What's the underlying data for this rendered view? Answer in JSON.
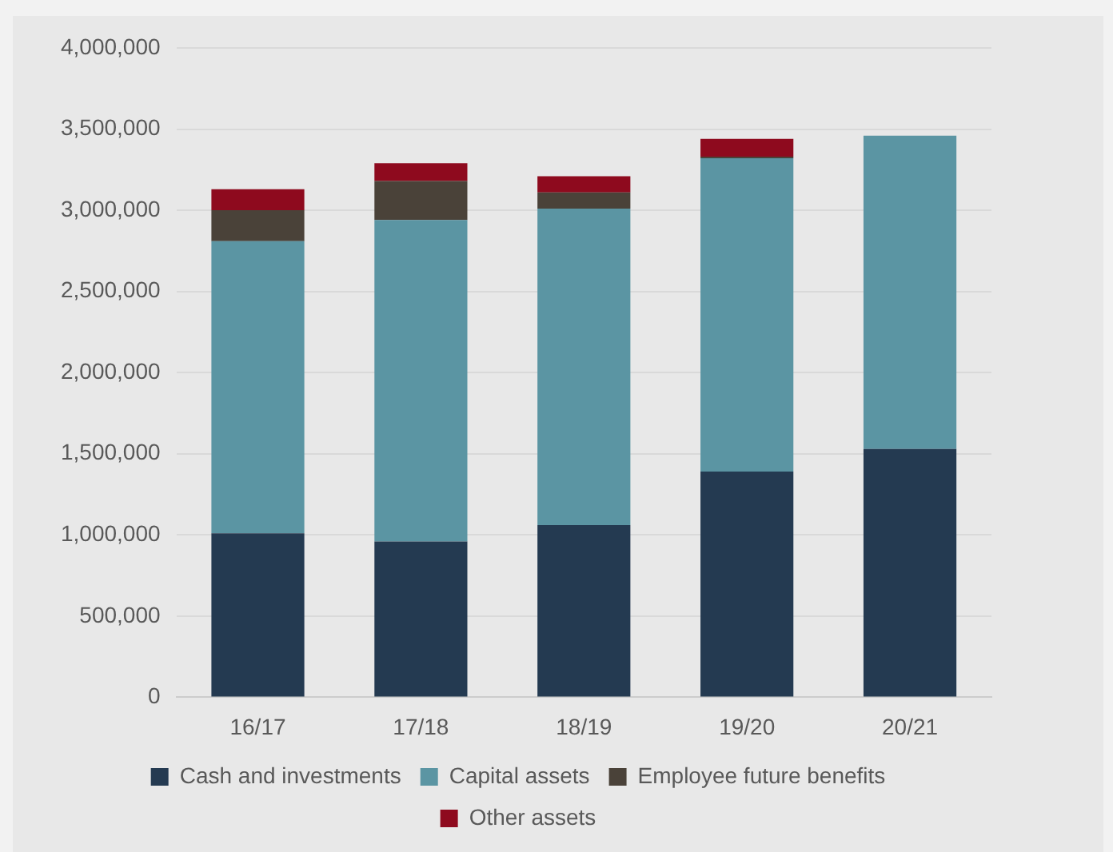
{
  "chart_data": {
    "type": "bar",
    "stacked": true,
    "categories": [
      "16/17",
      "17/18",
      "18/19",
      "19/20",
      "20/21"
    ],
    "series": [
      {
        "name": "Cash and investments",
        "color": "#243a51",
        "values": [
          1010000,
          960000,
          1060000,
          1390000,
          1530000
        ]
      },
      {
        "name": "Capital assets",
        "color": "#5b95a3",
        "values": [
          1800000,
          1980000,
          1950000,
          1930000,
          1930000
        ]
      },
      {
        "name": "Employee future benefits",
        "color": "#4a4239",
        "values": [
          190000,
          240000,
          100000,
          10000,
          0
        ]
      },
      {
        "name": "Other assets",
        "color": "#8e0a1e",
        "values": [
          130000,
          110000,
          100000,
          110000,
          0
        ]
      }
    ],
    "ylim": [
      0,
      4000000
    ],
    "yticks": [
      {
        "value": 0,
        "label": "0"
      },
      {
        "value": 500000,
        "label": "500,000"
      },
      {
        "value": 1000000,
        "label": "1,000,000"
      },
      {
        "value": 1500000,
        "label": "1,500,000"
      },
      {
        "value": 2000000,
        "label": "2,000,000"
      },
      {
        "value": 2500000,
        "label": "2,500,000"
      },
      {
        "value": 3000000,
        "label": "3,000,000"
      },
      {
        "value": 3500000,
        "label": "3,500,000"
      },
      {
        "value": 4000000,
        "label": "4,000,000"
      }
    ],
    "grid": "y",
    "legend": "bottom"
  }
}
